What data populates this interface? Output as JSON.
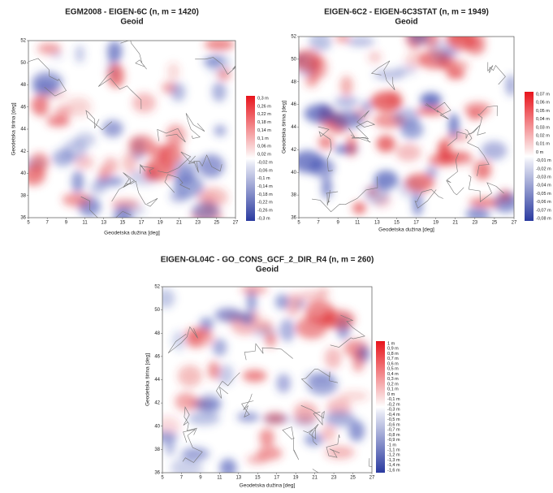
{
  "panels": [
    {
      "title": "EGM2008 - EIGEN-6C (n, m = 1420)",
      "subtitle": "Geoid",
      "x_axis_label": "Geodetska dužina [deg]",
      "y_axis_label": "Geodetska širina [deg]",
      "x_ticks": [
        5,
        7,
        9,
        11,
        13,
        15,
        17,
        19,
        21,
        23,
        25,
        27
      ],
      "y_ticks": [
        36,
        38,
        40,
        42,
        44,
        46,
        48,
        50,
        52
      ],
      "colorbar_labels": [
        "0,3 m",
        "0,26 m",
        "0,22 m",
        "0,18 m",
        "0,14 m",
        "0,1 m",
        "0,06 m",
        "0,02 m",
        "-0,02 m",
        "-0,06 m",
        "-0,1 m",
        "-0,14 m",
        "-0,18 m",
        "-0,22 m",
        "-0,26 m",
        "-0,3 m"
      ]
    },
    {
      "title": "EIGEN-6C2 - EIGEN-6C3STAT (n, m = 1949)",
      "subtitle": "Geoid",
      "x_axis_label": "Geodetska dužina [deg]",
      "y_axis_label": "Geodetska širina [deg]",
      "x_ticks": [
        5,
        7,
        9,
        11,
        13,
        15,
        17,
        19,
        21,
        23,
        25,
        27
      ],
      "y_ticks": [
        36,
        38,
        40,
        42,
        44,
        46,
        48,
        50,
        52
      ],
      "colorbar_labels": [
        "0,07 m",
        "0,06 m",
        "0,05 m",
        "0,04 m",
        "0,03 m",
        "0,02 m",
        "0,01 m",
        "0 m",
        "-0,01 m",
        "-0,02 m",
        "-0,03 m",
        "-0,04 m",
        "-0,05 m",
        "-0,06 m",
        "-0,07 m",
        "-0,08 m"
      ]
    },
    {
      "title": "EIGEN-GL04C - GO_CONS_GCF_2_DIR_R4 (n, m = 260)",
      "subtitle": "Geoid",
      "x_axis_label": "Geodetska dužina [deg]",
      "y_axis_label": "Geodetska širina [deg]",
      "x_ticks": [
        5,
        7,
        9,
        11,
        13,
        15,
        17,
        19,
        21,
        23,
        25,
        27
      ],
      "y_ticks": [
        36,
        38,
        40,
        42,
        44,
        46,
        48,
        50,
        52
      ],
      "colorbar_labels": [
        "1 m",
        "0,9 m",
        "0,8 m",
        "0,7 m",
        "0,6 m",
        "0,5 m",
        "0,4 m",
        "0,3 m",
        "0,2 m",
        "0,1 m",
        "0 m",
        "-0,1 m",
        "-0,2 m",
        "-0,3 m",
        "-0,4 m",
        "-0,5 m",
        "-0,6 m",
        "-0,7 m",
        "-0,8 m",
        "-0,9 m",
        "-1 m",
        "-1,1 m",
        "-1,2 m",
        "-1,3 m",
        "-1,4 m",
        "-1,6 m"
      ]
    }
  ]
}
